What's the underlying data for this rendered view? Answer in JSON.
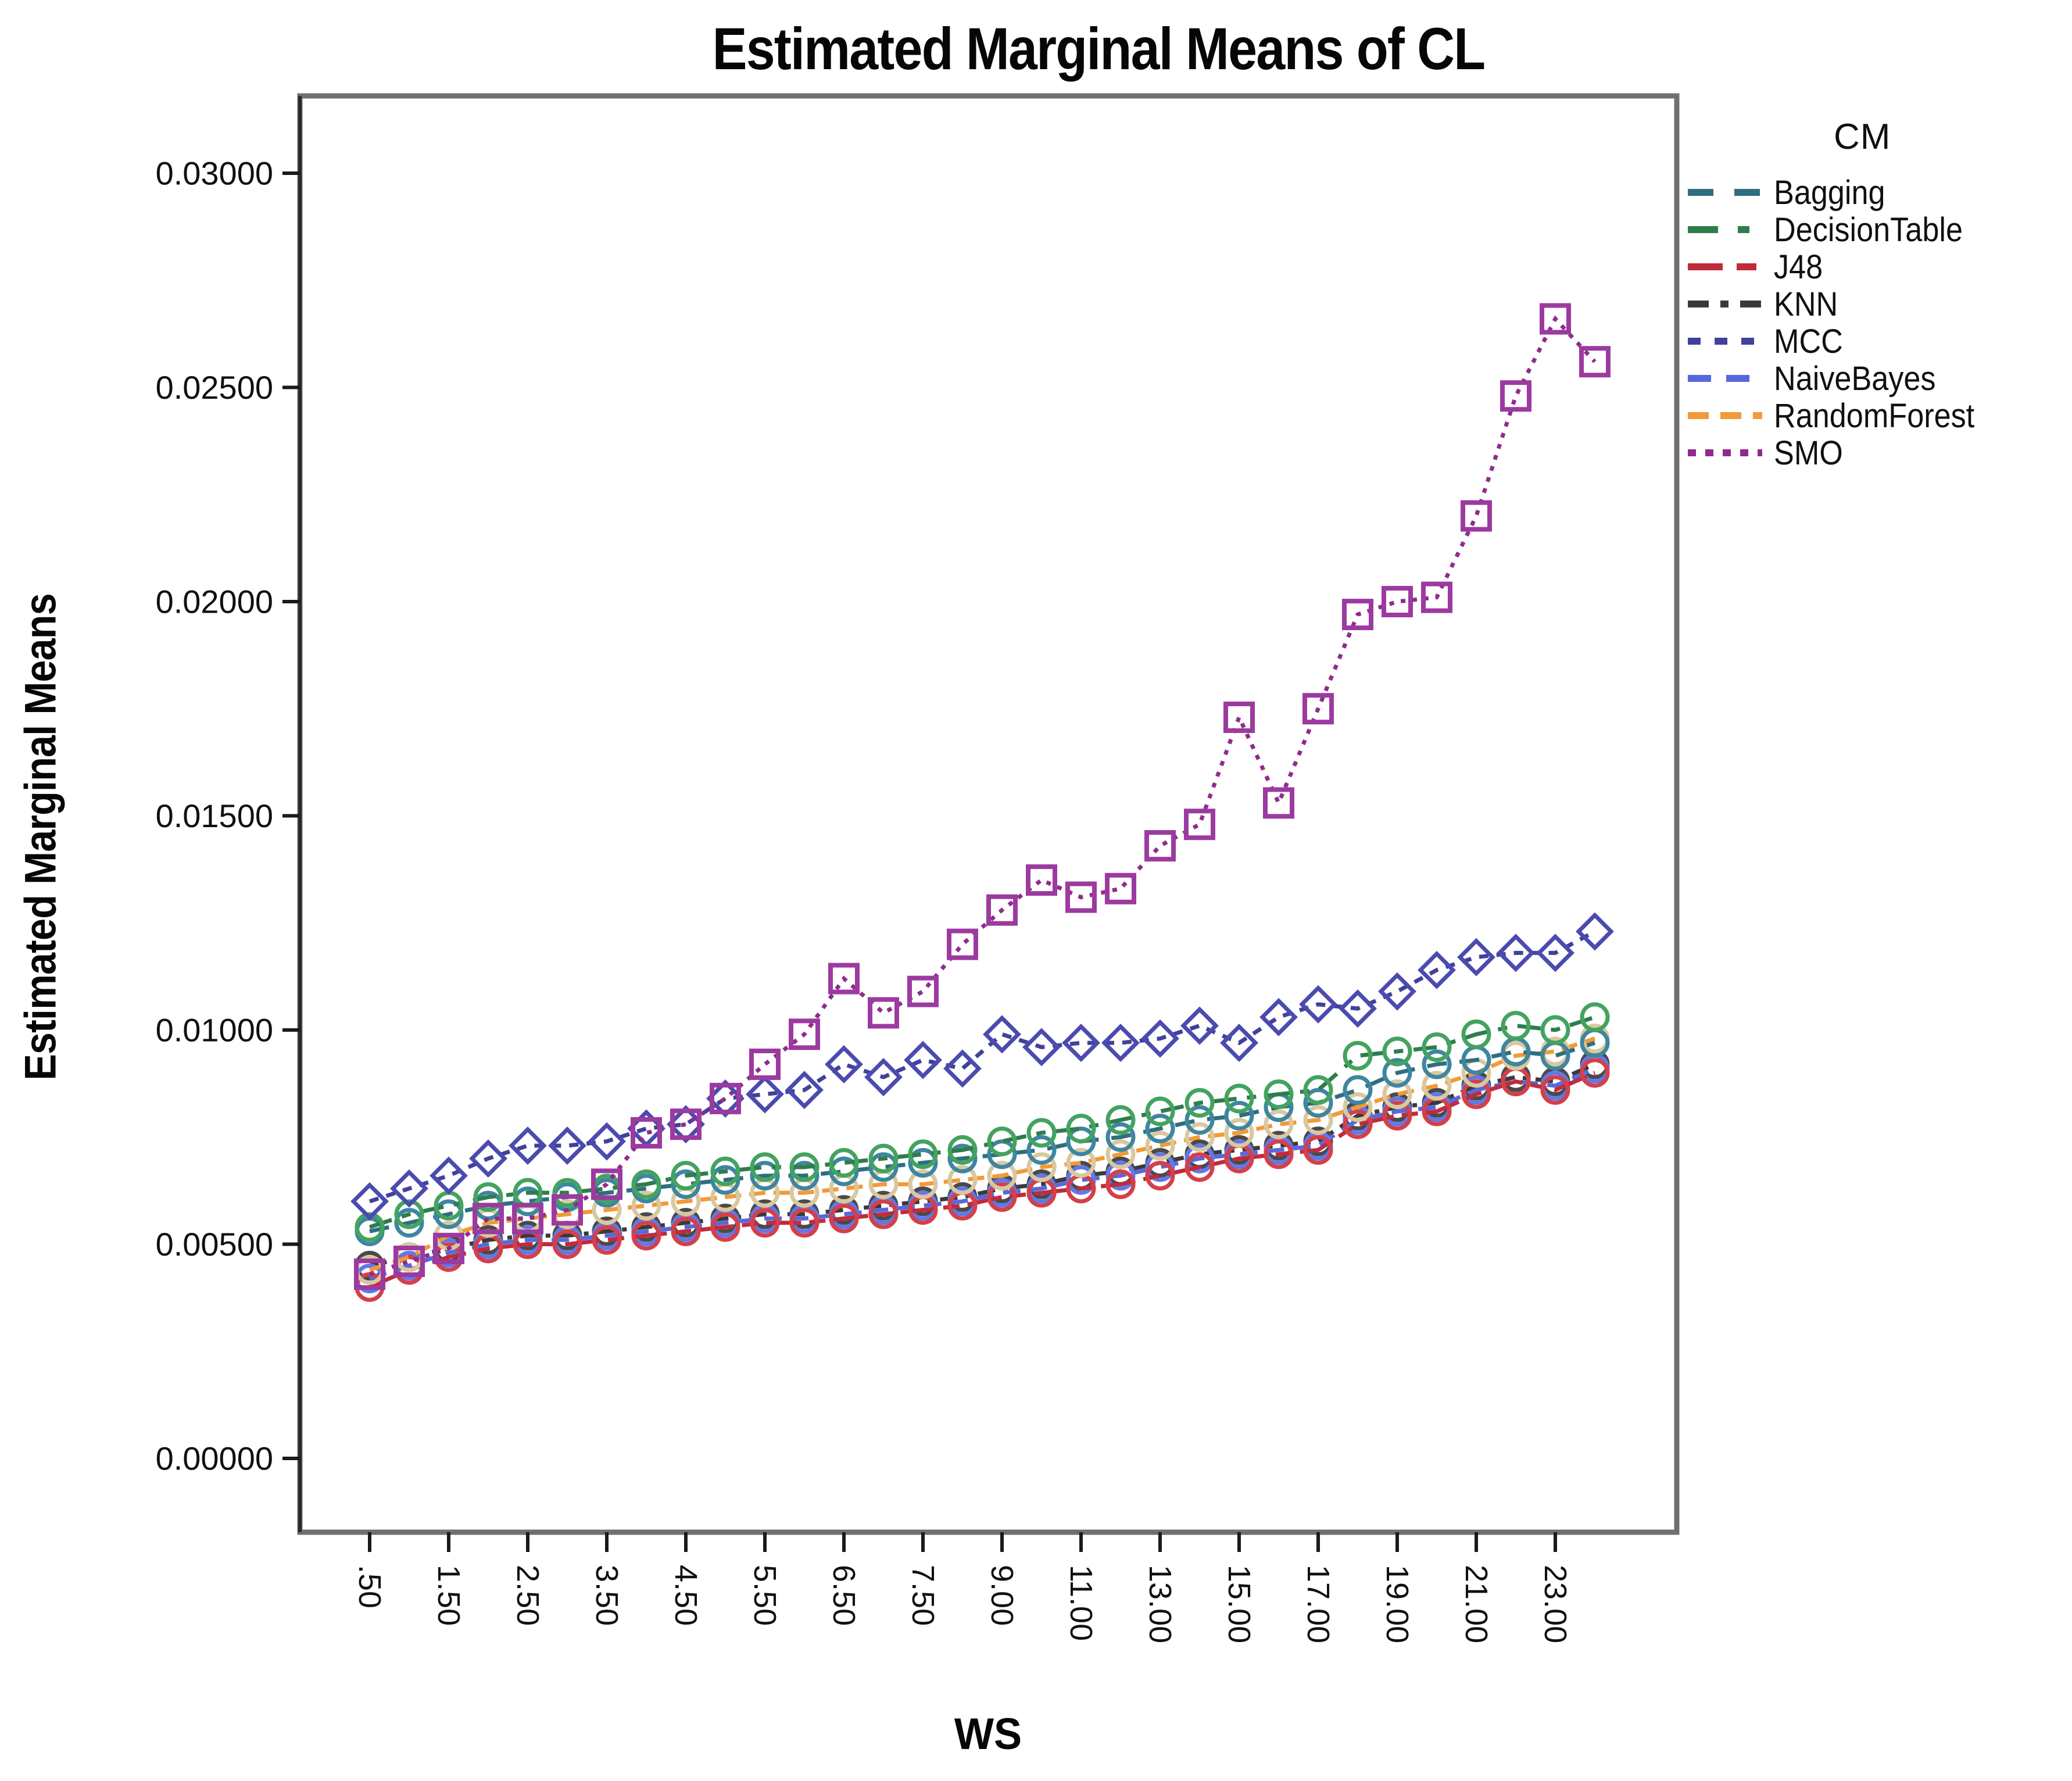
{
  "title": "Estimated Marginal Means of CL",
  "y_axis": {
    "label": "Estimated Marginal Means",
    "ticks": [
      "0.03000",
      "0.02500",
      "0.02000",
      "0.01500",
      "0.01000",
      "0.00500",
      "0.00000"
    ],
    "tick_values": [
      0.03,
      0.025,
      0.02,
      0.015,
      0.01,
      0.005,
      0.0
    ]
  },
  "x_axis": {
    "label": "WS",
    "ticks": [
      {
        "label": ".50",
        "value": 0.5
      },
      {
        "label": "1.50",
        "value": 1.5
      },
      {
        "label": "2.50",
        "value": 2.5
      },
      {
        "label": "3.50",
        "value": 3.5
      },
      {
        "label": "4.50",
        "value": 4.5
      },
      {
        "label": "5.50",
        "value": 5.5
      },
      {
        "label": "6.50",
        "value": 6.5
      },
      {
        "label": "7.50",
        "value": 7.5
      },
      {
        "label": "9.00",
        "value": 9.0
      },
      {
        "label": "11.00",
        "value": 11.0
      },
      {
        "label": "13.00",
        "value": 13.0
      },
      {
        "label": "15.00",
        "value": 15.0
      },
      {
        "label": "17.00",
        "value": 17.0
      },
      {
        "label": "19.00",
        "value": 19.0
      },
      {
        "label": "21.00",
        "value": 21.0
      },
      {
        "label": "23.00",
        "value": 23.0
      }
    ]
  },
  "legend": {
    "title": "CM",
    "entries": [
      {
        "label": "Bagging"
      },
      {
        "label": "DecisionTable"
      },
      {
        "label": "J48"
      },
      {
        "label": "KNN"
      },
      {
        "label": "MCC"
      },
      {
        "label": "NaiveBayes"
      },
      {
        "label": "RandomForest"
      },
      {
        "label": "SMO"
      }
    ]
  },
  "chart_data": {
    "type": "line",
    "title": "Estimated Marginal Means of CL",
    "xlabel": "WS",
    "ylabel": "Estimated Marginal Means",
    "ylim": [
      0.0,
      0.0318
    ],
    "grid": false,
    "legend_position": "right",
    "x": [
      0.5,
      1.0,
      1.5,
      2.0,
      2.5,
      3.0,
      3.5,
      4.0,
      4.5,
      5.0,
      5.5,
      6.0,
      6.5,
      7.0,
      7.5,
      8.0,
      9.0,
      10.0,
      11.0,
      12.0,
      13.0,
      14.0,
      15.0,
      16.0,
      17.0,
      18.0,
      19.0,
      20.0,
      21.0,
      22.0,
      23.0,
      24.0
    ],
    "series": [
      {
        "name": "Bagging",
        "color": "#2F6E80",
        "marker": "circle",
        "marker_color": "#3E86A0",
        "dash": "34 22",
        "legend_dash": "44 36",
        "values": [
          0.0053,
          0.0055,
          0.0057,
          0.0059,
          0.006,
          0.0061,
          0.0062,
          0.0063,
          0.0064,
          0.0065,
          0.0066,
          0.0066,
          0.0067,
          0.0068,
          0.0069,
          0.007,
          0.0071,
          0.0072,
          0.0074,
          0.0075,
          0.0077,
          0.0079,
          0.008,
          0.0082,
          0.0083,
          0.0086,
          0.009,
          0.0092,
          0.0093,
          0.0095,
          0.0094,
          0.0097
        ]
      },
      {
        "name": "DecisionTable",
        "color": "#2E7D4B",
        "marker": "circle",
        "marker_color": "#43A35F",
        "dash": "40 18 16 18",
        "legend_dash": "52 34 20 34",
        "values": [
          0.0054,
          0.0057,
          0.0059,
          0.0061,
          0.0062,
          0.0062,
          0.0063,
          0.0064,
          0.0066,
          0.0067,
          0.0068,
          0.0068,
          0.0069,
          0.007,
          0.0071,
          0.0072,
          0.0074,
          0.0076,
          0.0077,
          0.0079,
          0.0081,
          0.0083,
          0.0084,
          0.0085,
          0.0086,
          0.0094,
          0.0095,
          0.0096,
          0.0099,
          0.0101,
          0.01,
          0.0103
        ]
      },
      {
        "name": "J48",
        "color": "#C02B3C",
        "marker": "circle",
        "marker_color": "#D4404A",
        "dash": "60 14 28 14",
        "legend_dash": "60 24 34 24",
        "values": [
          0.004,
          0.0044,
          0.0047,
          0.0049,
          0.005,
          0.005,
          0.0051,
          0.0052,
          0.0053,
          0.0054,
          0.0055,
          0.0055,
          0.0056,
          0.0057,
          0.0058,
          0.0059,
          0.0061,
          0.0062,
          0.0063,
          0.0064,
          0.0066,
          0.0068,
          0.007,
          0.0071,
          0.0072,
          0.0078,
          0.008,
          0.0081,
          0.0085,
          0.0088,
          0.0086,
          0.009
        ]
      },
      {
        "name": "KNN",
        "color": "#3A3A3A",
        "marker": "circle",
        "marker_color": "#4A4A4A",
        "dash": "30 14 8 14",
        "legend_dash": "36 20 14 20",
        "values": [
          0.0045,
          0.0047,
          0.0049,
          0.0051,
          0.0052,
          0.0052,
          0.0053,
          0.0054,
          0.0055,
          0.0056,
          0.0057,
          0.0057,
          0.0058,
          0.0059,
          0.006,
          0.0061,
          0.0063,
          0.0064,
          0.0066,
          0.0067,
          0.0069,
          0.0071,
          0.0072,
          0.0073,
          0.0074,
          0.008,
          0.0082,
          0.0083,
          0.0087,
          0.0089,
          0.0088,
          0.0092
        ]
      },
      {
        "name": "MCC",
        "color": "#41419B",
        "marker": "diamond",
        "marker_color": "#4B4BAF",
        "dash": "16 14",
        "legend_dash": "22 24",
        "values": [
          0.006,
          0.0063,
          0.0066,
          0.007,
          0.0073,
          0.0073,
          0.0074,
          0.0077,
          0.0078,
          0.0084,
          0.0085,
          0.0086,
          0.0092,
          0.0089,
          0.0093,
          0.0091,
          0.0099,
          0.0096,
          0.0097,
          0.0097,
          0.0098,
          0.0101,
          0.0097,
          0.0103,
          0.0106,
          0.0105,
          0.0109,
          0.0114,
          0.0117,
          0.0118,
          0.0118,
          0.0123
        ]
      },
      {
        "name": "NaiveBayes",
        "color": "#5768DD",
        "marker": "circle",
        "marker_color": "#6377E6",
        "dash": "30 16",
        "legend_dash": "40 26",
        "values": [
          0.0042,
          0.0045,
          0.0048,
          0.005,
          0.0051,
          0.0051,
          0.0052,
          0.0053,
          0.0054,
          0.0055,
          0.0056,
          0.0056,
          0.0057,
          0.0058,
          0.0059,
          0.006,
          0.0062,
          0.0063,
          0.0065,
          0.0066,
          0.0068,
          0.007,
          0.0071,
          0.0072,
          0.0073,
          0.0079,
          0.0081,
          0.0082,
          0.0086,
          0.0088,
          0.0087,
          0.0091
        ]
      },
      {
        "name": "RandomForest",
        "color": "#F29A38",
        "marker": "circle",
        "marker_color": "#D9C89F",
        "dash": "28 14",
        "legend_dash": "36 20",
        "values": [
          0.0044,
          0.0047,
          0.0052,
          0.0055,
          0.0056,
          0.0057,
          0.0058,
          0.0059,
          0.006,
          0.0061,
          0.0062,
          0.0062,
          0.0063,
          0.0064,
          0.0064,
          0.0065,
          0.0066,
          0.0068,
          0.0069,
          0.0071,
          0.0073,
          0.0075,
          0.0076,
          0.0078,
          0.0079,
          0.0082,
          0.0085,
          0.0087,
          0.009,
          0.0094,
          0.0095,
          0.0098
        ]
      },
      {
        "name": "SMO",
        "color": "#8E2C8E",
        "marker": "square",
        "marker_color": "#9C3AA0",
        "dash": "8 12",
        "legend_dash": "14 16",
        "values": [
          0.0043,
          0.0046,
          0.0049,
          0.0056,
          0.0056,
          0.0058,
          0.0064,
          0.0076,
          0.0078,
          0.0084,
          0.0092,
          0.0099,
          0.0112,
          0.0104,
          0.0109,
          0.012,
          0.0128,
          0.0135,
          0.0131,
          0.0133,
          0.0143,
          0.0148,
          0.0173,
          0.0153,
          0.0175,
          0.0197,
          0.02,
          0.0201,
          0.022,
          0.0248,
          0.0266,
          0.0256
        ]
      }
    ]
  }
}
